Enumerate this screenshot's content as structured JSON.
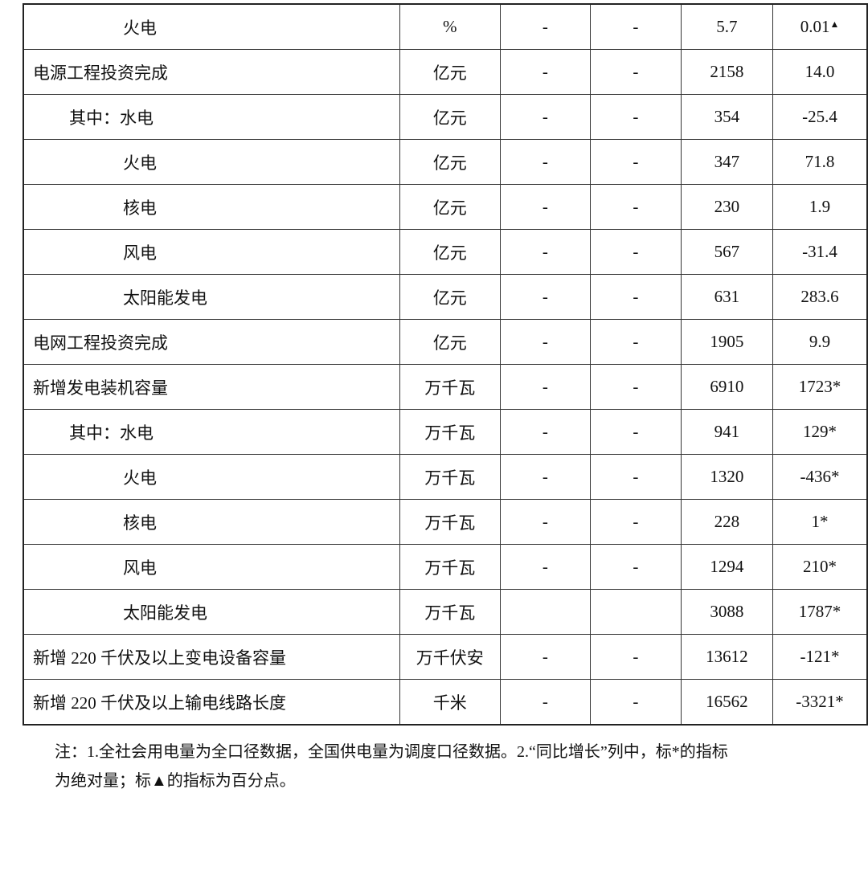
{
  "table": {
    "rows": [
      {
        "name": "火电",
        "level": 2,
        "unit": "%",
        "c2": "-",
        "c3": "-",
        "value": "5.7",
        "yoy": "0.01",
        "yoy_mark": "▲"
      },
      {
        "name": "电源工程投资完成",
        "level": 0,
        "unit": "亿元",
        "c2": "-",
        "c3": "-",
        "value": "2158",
        "yoy": "14.0"
      },
      {
        "name": "其中：水电",
        "level": 1,
        "unit": "亿元",
        "c2": "-",
        "c3": "-",
        "value": "354",
        "yoy": "-25.4"
      },
      {
        "name": "火电",
        "level": 2,
        "unit": "亿元",
        "c2": "-",
        "c3": "-",
        "value": "347",
        "yoy": "71.8"
      },
      {
        "name": "核电",
        "level": 2,
        "unit": "亿元",
        "c2": "-",
        "c3": "-",
        "value": "230",
        "yoy": "1.9"
      },
      {
        "name": "风电",
        "level": 2,
        "unit": "亿元",
        "c2": "-",
        "c3": "-",
        "value": "567",
        "yoy": "-31.4"
      },
      {
        "name": "太阳能发电",
        "level": 2,
        "unit": "亿元",
        "c2": "-",
        "c3": "-",
        "value": "631",
        "yoy": "283.6"
      },
      {
        "name": "电网工程投资完成",
        "level": 0,
        "unit": "亿元",
        "c2": "-",
        "c3": "-",
        "value": "1905",
        "yoy": "9.9"
      },
      {
        "name": "新增发电装机容量",
        "level": 0,
        "unit": "万千瓦",
        "c2": "-",
        "c3": "-",
        "value": "6910",
        "yoy": "1723*"
      },
      {
        "name": "其中：水电",
        "level": 1,
        "unit": "万千瓦",
        "c2": "-",
        "c3": "-",
        "value": "941",
        "yoy": "129*"
      },
      {
        "name": "火电",
        "level": 2,
        "unit": "万千瓦",
        "c2": "-",
        "c3": "-",
        "value": "1320",
        "yoy": "-436*"
      },
      {
        "name": "核电",
        "level": 2,
        "unit": "万千瓦",
        "c2": "-",
        "c3": "-",
        "value": "228",
        "yoy": "1*"
      },
      {
        "name": "风电",
        "level": 2,
        "unit": "万千瓦",
        "c2": "-",
        "c3": "-",
        "value": "1294",
        "yoy": "210*"
      },
      {
        "name": "太阳能发电",
        "level": 2,
        "unit": "万千瓦",
        "c2": "",
        "c3": "",
        "value": "3088",
        "yoy": "1787*"
      },
      {
        "name": "新增 220 千伏及以上变电设备容量",
        "level": 0,
        "unit": "万千伏安",
        "c2": "-",
        "c3": "-",
        "value": "13612",
        "yoy": "-121*"
      },
      {
        "name": "新增 220 千伏及以上输电线路长度",
        "level": 0,
        "unit": "千米",
        "c2": "-",
        "c3": "-",
        "value": "16562",
        "yoy": "-3321*"
      }
    ]
  },
  "note": {
    "line1": "注：1.全社会用电量为全口径数据，全国供电量为调度口径数据。2.“同比增长”列中，标*的指标",
    "line2": "为绝对量；标▲的指标为百分点。"
  }
}
